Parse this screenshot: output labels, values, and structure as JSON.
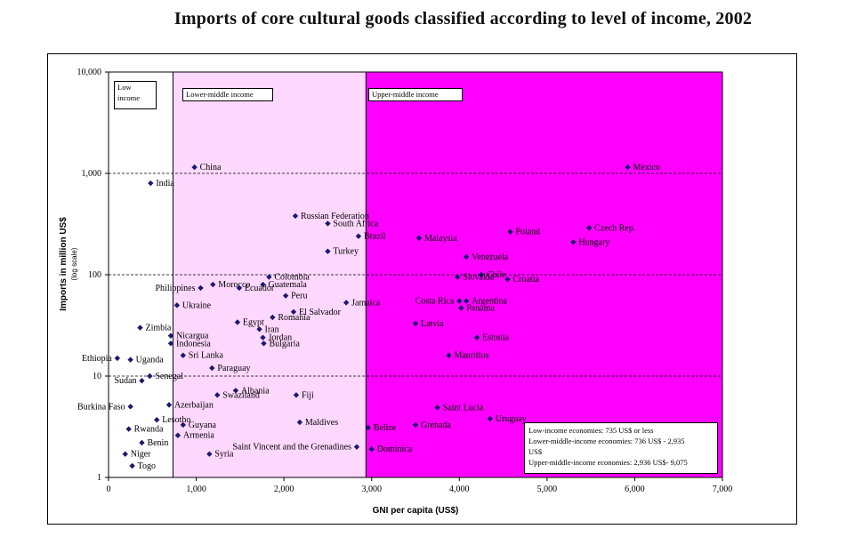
{
  "title": "Imports of core cultural goods classified according to level of income, 2002",
  "chart_data": {
    "type": "scatter",
    "xlabel": "GNI per capita (US$)",
    "ylabel": "Imports in million US$",
    "ylabel_sub": "(log scale)",
    "xlim": [
      0,
      7000
    ],
    "ylim": [
      1,
      10000
    ],
    "yscale": "log",
    "x_ticks": [
      "0",
      "1,000",
      "2,000",
      "3,000",
      "4,000",
      "5,000",
      "6,000",
      "7,000"
    ],
    "y_ticks": [
      "1",
      "10",
      "100",
      "1,000",
      "10,000"
    ],
    "regions": [
      {
        "name": "Low income",
        "x_start": 0,
        "x_end": 735,
        "color": "#ffffff"
      },
      {
        "name": "Lower-middle income",
        "x_start": 735,
        "x_end": 2935,
        "color": "#ffd8ff"
      },
      {
        "name": "Upper-middle income",
        "x_start": 2935,
        "x_end": 7000,
        "color": "#ff00ff"
      }
    ],
    "points": [
      {
        "label": "China",
        "x": 980,
        "y": 1150
      },
      {
        "label": "India",
        "x": 480,
        "y": 800
      },
      {
        "label": "Russian Federation",
        "x": 2130,
        "y": 380
      },
      {
        "label": "South Africa",
        "x": 2500,
        "y": 320
      },
      {
        "label": "Brazil",
        "x": 2850,
        "y": 240
      },
      {
        "label": "Turkey",
        "x": 2500,
        "y": 170
      },
      {
        "label": "Colombia",
        "x": 1830,
        "y": 95
      },
      {
        "label": "Morocco",
        "x": 1190,
        "y": 80
      },
      {
        "label": "Guatemala",
        "x": 1760,
        "y": 80
      },
      {
        "label": "Philippines",
        "x": 1050,
        "y": 74
      },
      {
        "label": "Ecuador",
        "x": 1490,
        "y": 74
      },
      {
        "label": "Peru",
        "x": 2020,
        "y": 62
      },
      {
        "label": "Jamaica",
        "x": 2710,
        "y": 53
      },
      {
        "label": "Ukraine",
        "x": 780,
        "y": 50
      },
      {
        "label": "Egypt",
        "x": 1470,
        "y": 34
      },
      {
        "label": "El Salvador",
        "x": 2110,
        "y": 43
      },
      {
        "label": "Romania",
        "x": 1870,
        "y": 38
      },
      {
        "label": "Zimbia",
        "x": 360,
        "y": 30
      },
      {
        "label": "Iran",
        "x": 1720,
        "y": 29
      },
      {
        "label": "Nicargua",
        "x": 710,
        "y": 25
      },
      {
        "label": "Jordan",
        "x": 1760,
        "y": 24
      },
      {
        "label": "Indonesia",
        "x": 710,
        "y": 21
      },
      {
        "label": "Bulgaria",
        "x": 1770,
        "y": 21
      },
      {
        "label": "Ethiopia",
        "x": 100,
        "y": 15
      },
      {
        "label": "Uganda",
        "x": 250,
        "y": 14.5
      },
      {
        "label": "Sri Lanka",
        "x": 850,
        "y": 16
      },
      {
        "label": "Paraguay",
        "x": 1180,
        "y": 12
      },
      {
        "label": "Senegal",
        "x": 470,
        "y": 10
      },
      {
        "label": "Sudan",
        "x": 380,
        "y": 9
      },
      {
        "label": "Albania",
        "x": 1450,
        "y": 7.2
      },
      {
        "label": "Swaziland",
        "x": 1240,
        "y": 6.5
      },
      {
        "label": "Azerbaijan",
        "x": 690,
        "y": 5.2
      },
      {
        "label": "Burkina Faso",
        "x": 250,
        "y": 5
      },
      {
        "label": "Fiji",
        "x": 2140,
        "y": 6.5
      },
      {
        "label": "Lesotho",
        "x": 550,
        "y": 3.7
      },
      {
        "label": "Guyana",
        "x": 850,
        "y": 3.3
      },
      {
        "label": "Rwanda",
        "x": 230,
        "y": 3
      },
      {
        "label": "Armenia",
        "x": 790,
        "y": 2.6
      },
      {
        "label": "Maldives",
        "x": 2180,
        "y": 3.5
      },
      {
        "label": "Benin",
        "x": 380,
        "y": 2.2
      },
      {
        "label": "Niger",
        "x": 190,
        "y": 1.7
      },
      {
        "label": "Syria",
        "x": 1150,
        "y": 1.7
      },
      {
        "label": "Togo",
        "x": 270,
        "y": 1.3
      },
      {
        "label": "Saint Vincent and the Grenadines",
        "x": 2830,
        "y": 2
      },
      {
        "label": "Belize",
        "x": 2960,
        "y": 3.1
      },
      {
        "label": "Dominica",
        "x": 3000,
        "y": 1.9
      },
      {
        "label": "Grenada",
        "x": 3500,
        "y": 3.3
      },
      {
        "label": "Saint Lucia",
        "x": 3750,
        "y": 4.9
      },
      {
        "label": "Uruguay",
        "x": 4350,
        "y": 3.8
      },
      {
        "label": "Mexico",
        "x": 5920,
        "y": 1150
      },
      {
        "label": "Czech Rep.",
        "x": 5480,
        "y": 290
      },
      {
        "label": "Poland",
        "x": 4580,
        "y": 265
      },
      {
        "label": "Hungary",
        "x": 5300,
        "y": 210
      },
      {
        "label": "Malaysia",
        "x": 3540,
        "y": 230
      },
      {
        "label": "Venezuela",
        "x": 4080,
        "y": 150
      },
      {
        "label": "Chile",
        "x": 4250,
        "y": 100
      },
      {
        "label": "Croatia",
        "x": 4550,
        "y": 90
      },
      {
        "label": "Slovakia",
        "x": 3980,
        "y": 95
      },
      {
        "label": "Costa Rica",
        "x": 4000,
        "y": 55
      },
      {
        "label": "Argentina",
        "x": 4080,
        "y": 55
      },
      {
        "label": "Panama",
        "x": 4020,
        "y": 47
      },
      {
        "label": "Latvia",
        "x": 3500,
        "y": 33
      },
      {
        "label": "Estonia",
        "x": 4200,
        "y": 24
      },
      {
        "label": "Mauritius",
        "x": 3880,
        "y": 16
      }
    ]
  },
  "region_labels": {
    "low": [
      "Low",
      "income"
    ],
    "lower_middle": "Lower-middle income",
    "upper_middle": "Upper-middle income"
  },
  "legend": {
    "line1": "Low-income economies: 735 US$ or less",
    "line2": "Lower-middle-income economies: 736 US$ - 2,935",
    "line3": "US$",
    "line4": "Upper-middle-income economies: 2,936 US$- 9,075"
  },
  "colors": {
    "marker": "#1a1a6e",
    "grid": "#000000"
  }
}
